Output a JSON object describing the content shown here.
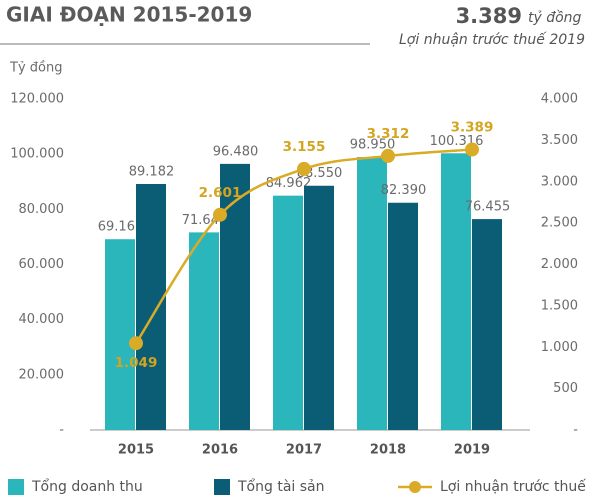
{
  "chart_data": {
    "type": "bar_line",
    "title": "GIAI ĐOẠN 2015-2019",
    "annotations": [
      "3.389",
      "tỷ đồng",
      "Lợi nhuận trước thuế 2019"
    ],
    "y_label": "Tỷ đồng",
    "categories": [
      "2015",
      "2016",
      "2017",
      "2018",
      "2019"
    ],
    "ylim": [
      0,
      120000
    ],
    "yticks": [
      {
        "value": 0,
        "label": "-"
      },
      {
        "value": 20000,
        "label": "20.000"
      },
      {
        "value": 40000,
        "label": "40.000"
      },
      {
        "value": 60000,
        "label": "60.000"
      },
      {
        "value": 80000,
        "label": "80.000"
      },
      {
        "value": 100000,
        "label": "100.000"
      },
      {
        "value": 120000,
        "label": "120.000"
      }
    ],
    "y2lim": [
      0,
      4000
    ],
    "y2ticks": [
      {
        "value": 0,
        "label": "-"
      },
      500,
      {
        "value": 1000,
        "label": "1.000"
      },
      {
        "value": 1500,
        "label": "1.500"
      },
      {
        "value": 2000,
        "label": "2.000"
      },
      {
        "value": 2500,
        "label": "2.500"
      },
      {
        "value": 3000,
        "label": "3.000"
      },
      {
        "value": 3500,
        "label": "3.500"
      },
      {
        "value": 4000,
        "label": "4.000"
      }
    ],
    "series": [
      {
        "name": "Tổng doanh thu",
        "type": "bar",
        "color": "#2bb6bc",
        "values": [
          69167,
          71642,
          84962,
          98950,
          100316
        ],
        "value_labels": [
          "69.167",
          "71.642",
          "84.962",
          "98.950",
          "100.316"
        ]
      },
      {
        "name": "Tổng tài sản",
        "type": "bar",
        "color": "#0b5d75",
        "values": [
          89182,
          96480,
          88550,
          82390,
          76455
        ],
        "value_labels": [
          "89.182",
          "96.480",
          "88.550",
          "82.390",
          "76.455"
        ]
      },
      {
        "name": "Lợi nhuận trước thuế",
        "type": "line",
        "axis": "y2",
        "color": "#d9ab26",
        "values": [
          1049,
          2601,
          3155,
          3312,
          3389
        ],
        "value_labels": [
          "1.049",
          "2.601",
          "3.155",
          "3.312",
          "3.389"
        ]
      }
    ],
    "legend": "bottom"
  }
}
